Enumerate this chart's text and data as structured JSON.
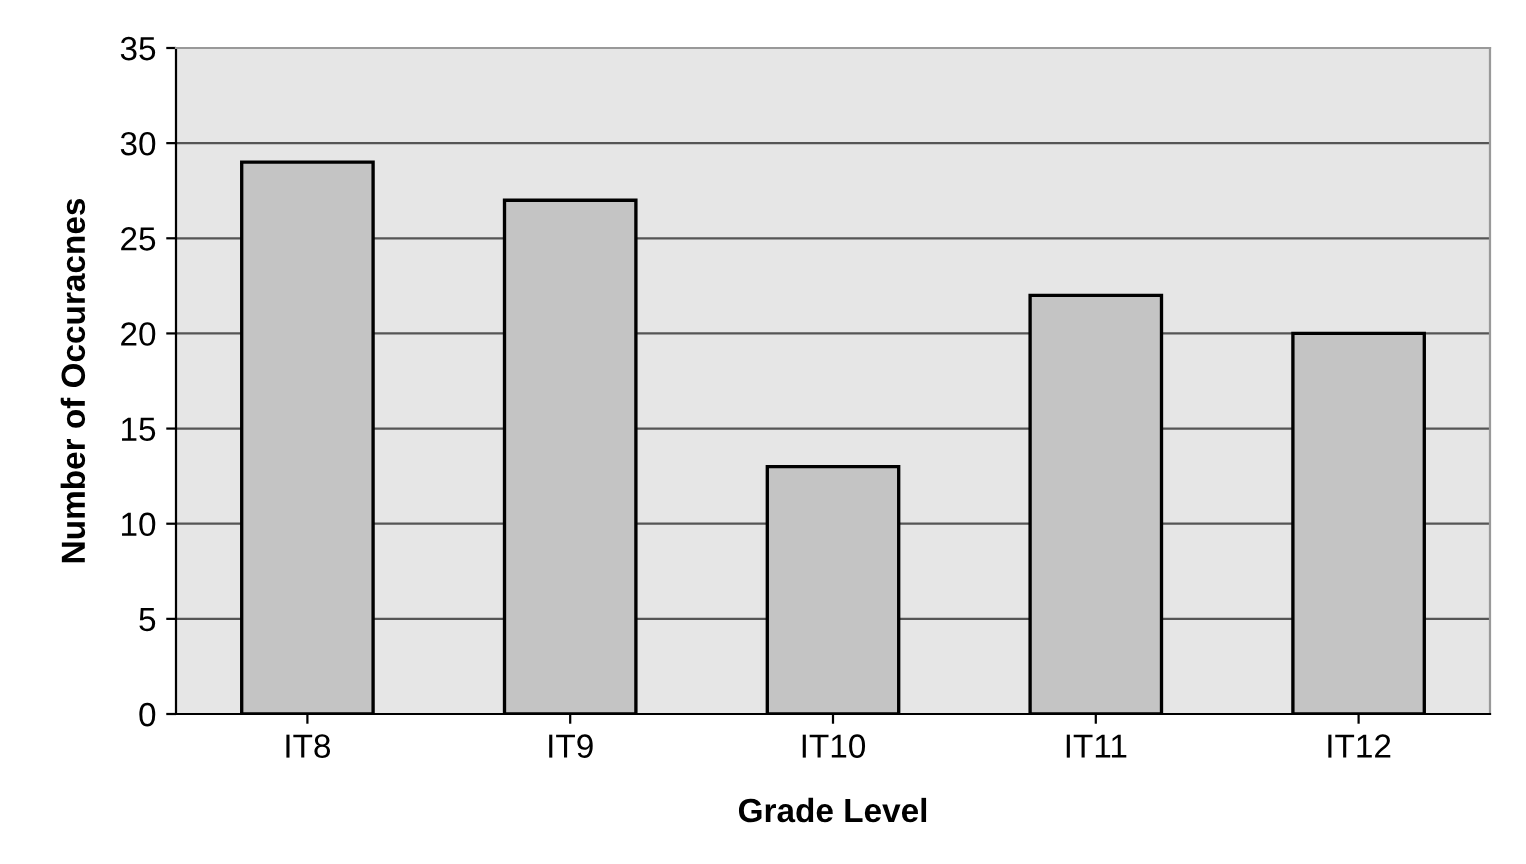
{
  "chart_data": {
    "type": "bar",
    "xlabel": "Grade Level",
    "ylabel": "Number of Occuracnes",
    "categories": [
      "IT8",
      "IT9",
      "IT10",
      "IT11",
      "IT12"
    ],
    "values": [
      29,
      27,
      13,
      22,
      20
    ],
    "color": "#c4c4c4",
    "ylim": [
      0,
      35
    ],
    "yticks": [
      0,
      5,
      10,
      15,
      20,
      25,
      30,
      35
    ],
    "grid": "y"
  }
}
